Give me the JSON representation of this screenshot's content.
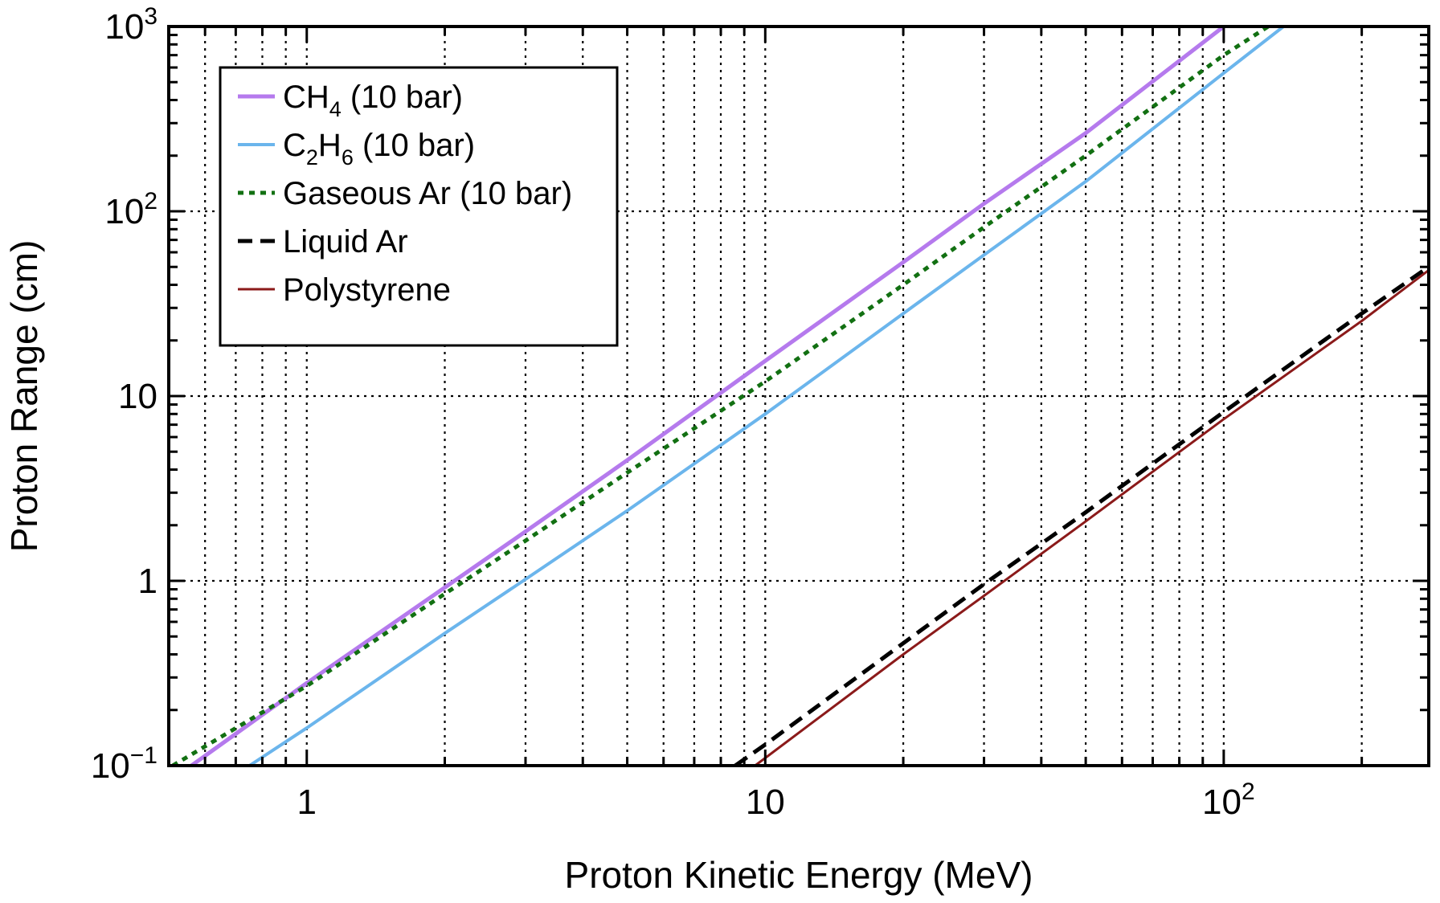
{
  "chart_data": {
    "type": "line",
    "title": "",
    "xlabel": "Proton Kinetic Energy (MeV)",
    "ylabel": "Proton Range (cm)",
    "xscale": "log",
    "yscale": "log",
    "xlim": [
      0.5,
      280
    ],
    "ylim": [
      0.1,
      1000
    ],
    "grid": "dotted major and minor",
    "x_ticks": [
      {
        "value": 1,
        "label": "1",
        "sup": ""
      },
      {
        "value": 10,
        "label": "10",
        "sup": ""
      },
      {
        "value": 100,
        "label": "10",
        "sup": "2"
      }
    ],
    "y_ticks": [
      {
        "value": 0.1,
        "label": "10",
        "sup": "−1"
      },
      {
        "value": 1,
        "label": "1",
        "sup": ""
      },
      {
        "value": 10,
        "label": "10",
        "sup": ""
      },
      {
        "value": 100,
        "label": "10",
        "sup": "2"
      },
      {
        "value": 1000,
        "label": "10",
        "sup": "3"
      }
    ],
    "legend": {
      "position": "top-left",
      "entries": [
        {
          "series": 0,
          "text": "CH",
          "sub": "4",
          "rest": " (10 bar)"
        },
        {
          "series": 1,
          "text": "C",
          "sub": "2",
          "mid": "H",
          "sub2": "6",
          "rest": " (10 bar)"
        },
        {
          "series": 2,
          "text": "Gaseous Ar (10 bar)"
        },
        {
          "series": 3,
          "text": "Liquid Ar"
        },
        {
          "series": 4,
          "text": "Polystyrene"
        }
      ]
    },
    "series": [
      {
        "name": "CH4 (10 bar)",
        "color": "#b57aed",
        "dash": "solid",
        "width": 5,
        "x": [
          0.56,
          1,
          2,
          3,
          5,
          10,
          20,
          30,
          50,
          100
        ],
        "y": [
          0.1,
          0.28,
          0.92,
          1.85,
          4.5,
          15.5,
          53,
          110,
          265,
          1000
        ]
      },
      {
        "name": "C2H6 (10 bar)",
        "color": "#6bb5ec",
        "dash": "solid",
        "width": 4,
        "x": [
          0.75,
          1,
          2,
          3,
          5,
          10,
          20,
          30,
          50,
          100,
          135
        ],
        "y": [
          0.1,
          0.16,
          0.52,
          1.02,
          2.4,
          8,
          28,
          58,
          145,
          560,
          1000
        ]
      },
      {
        "name": "Gaseous Ar (10 bar)",
        "color": "#127012",
        "dash": "dotted",
        "width": 5,
        "x": [
          0.51,
          1,
          2,
          3,
          5,
          10,
          20,
          30,
          50,
          100,
          125
        ],
        "y": [
          0.1,
          0.27,
          0.85,
          1.65,
          3.85,
          12,
          40,
          82,
          200,
          700,
          1000
        ]
      },
      {
        "name": "Liquid Ar",
        "color": "#000000",
        "dash": "dashed",
        "width": 5,
        "x": [
          8.6,
          10,
          20,
          30,
          50,
          100,
          200,
          280
        ],
        "y": [
          0.1,
          0.13,
          0.46,
          0.96,
          2.35,
          8.2,
          28,
          50
        ]
      },
      {
        "name": "Polystyrene",
        "color": "#8b1a1a",
        "dash": "solid",
        "width": 3,
        "x": [
          9.5,
          10,
          20,
          30,
          50,
          100,
          200,
          280
        ],
        "y": [
          0.1,
          0.11,
          0.4,
          0.83,
          2.1,
          7.5,
          25.5,
          48
        ]
      }
    ]
  }
}
